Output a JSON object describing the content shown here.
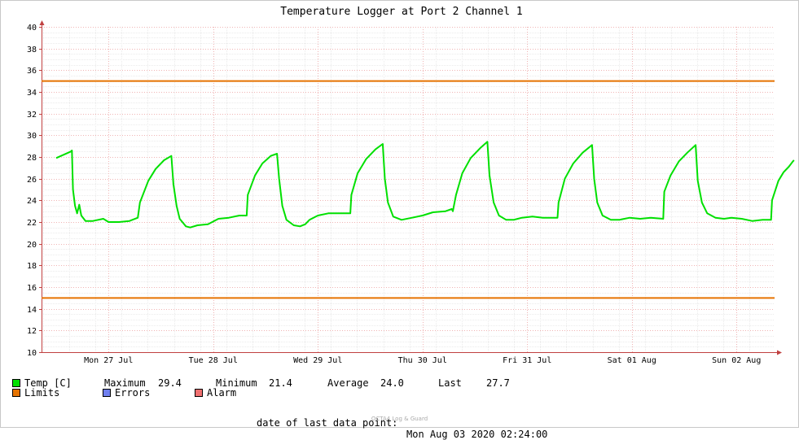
{
  "chart_data": {
    "type": "line",
    "title": "Temperature Logger at Port 2 Channel 1",
    "ylim": [
      10,
      40
    ],
    "y_ticks": [
      10,
      12,
      14,
      16,
      18,
      20,
      22,
      24,
      26,
      28,
      30,
      32,
      34,
      36,
      38,
      40
    ],
    "x_ticks": [
      {
        "label": "Mon 27 Jul",
        "day": 1
      },
      {
        "label": "Tue 28 Jul",
        "day": 2
      },
      {
        "label": "Wed 29 Jul",
        "day": 3
      },
      {
        "label": "Thu 30 Jul",
        "day": 4
      },
      {
        "label": "Fri 31 Jul",
        "day": 5
      },
      {
        "label": "Sat 01 Aug",
        "day": 6
      },
      {
        "label": "Sun 02 Aug",
        "day": 7
      }
    ],
    "series": [
      {
        "name": "Temp [C]",
        "color": "#00e000",
        "points": [
          [
            0.0,
            27.9
          ],
          [
            0.07,
            28.2
          ],
          [
            0.14,
            28.5
          ],
          [
            0.15,
            28.6
          ],
          [
            0.16,
            25.0
          ],
          [
            0.18,
            23.5
          ],
          [
            0.2,
            22.8
          ],
          [
            0.22,
            23.6
          ],
          [
            0.24,
            22.6
          ],
          [
            0.28,
            22.1
          ],
          [
            0.35,
            22.1
          ],
          [
            0.45,
            22.3
          ],
          [
            0.5,
            22.0
          ],
          [
            0.6,
            22.0
          ],
          [
            0.7,
            22.1
          ],
          [
            0.78,
            22.4
          ],
          [
            0.8,
            23.8
          ],
          [
            0.88,
            25.8
          ],
          [
            0.95,
            26.9
          ],
          [
            1.03,
            27.7
          ],
          [
            1.1,
            28.1
          ],
          [
            1.12,
            25.5
          ],
          [
            1.15,
            23.5
          ],
          [
            1.18,
            22.3
          ],
          [
            1.24,
            21.6
          ],
          [
            1.28,
            21.5
          ],
          [
            1.35,
            21.7
          ],
          [
            1.45,
            21.8
          ],
          [
            1.55,
            22.3
          ],
          [
            1.65,
            22.4
          ],
          [
            1.75,
            22.6
          ],
          [
            1.82,
            22.6
          ],
          [
            1.83,
            24.5
          ],
          [
            1.9,
            26.3
          ],
          [
            1.97,
            27.4
          ],
          [
            2.05,
            28.1
          ],
          [
            2.11,
            28.3
          ],
          [
            2.13,
            26.0
          ],
          [
            2.16,
            23.5
          ],
          [
            2.2,
            22.2
          ],
          [
            2.27,
            21.7
          ],
          [
            2.33,
            21.6
          ],
          [
            2.38,
            21.8
          ],
          [
            2.42,
            22.2
          ],
          [
            2.5,
            22.6
          ],
          [
            2.6,
            22.8
          ],
          [
            2.72,
            22.8
          ],
          [
            2.81,
            22.8
          ],
          [
            2.82,
            24.5
          ],
          [
            2.88,
            26.5
          ],
          [
            2.96,
            27.8
          ],
          [
            3.05,
            28.7
          ],
          [
            3.12,
            29.2
          ],
          [
            3.14,
            26.0
          ],
          [
            3.17,
            23.8
          ],
          [
            3.22,
            22.5
          ],
          [
            3.3,
            22.2
          ],
          [
            3.4,
            22.4
          ],
          [
            3.5,
            22.6
          ],
          [
            3.6,
            22.9
          ],
          [
            3.72,
            23.0
          ],
          [
            3.78,
            23.2
          ],
          [
            3.79,
            23.0
          ],
          [
            3.82,
            24.5
          ],
          [
            3.88,
            26.5
          ],
          [
            3.96,
            27.9
          ],
          [
            4.05,
            28.8
          ],
          [
            4.12,
            29.4
          ],
          [
            4.14,
            26.3
          ],
          [
            4.18,
            23.8
          ],
          [
            4.23,
            22.6
          ],
          [
            4.3,
            22.2
          ],
          [
            4.37,
            22.2
          ],
          [
            4.45,
            22.4
          ],
          [
            4.55,
            22.5
          ],
          [
            4.65,
            22.4
          ],
          [
            4.79,
            22.4
          ],
          [
            4.8,
            23.8
          ],
          [
            4.86,
            26.0
          ],
          [
            4.94,
            27.4
          ],
          [
            5.03,
            28.4
          ],
          [
            5.12,
            29.1
          ],
          [
            5.14,
            26.0
          ],
          [
            5.17,
            23.8
          ],
          [
            5.22,
            22.6
          ],
          [
            5.3,
            22.2
          ],
          [
            5.38,
            22.2
          ],
          [
            5.48,
            22.4
          ],
          [
            5.58,
            22.3
          ],
          [
            5.68,
            22.4
          ],
          [
            5.8,
            22.3
          ],
          [
            5.81,
            24.8
          ],
          [
            5.87,
            26.3
          ],
          [
            5.95,
            27.6
          ],
          [
            6.03,
            28.4
          ],
          [
            6.11,
            29.1
          ],
          [
            6.13,
            25.8
          ],
          [
            6.17,
            23.8
          ],
          [
            6.22,
            22.8
          ],
          [
            6.3,
            22.4
          ],
          [
            6.38,
            22.3
          ],
          [
            6.45,
            22.4
          ],
          [
            6.55,
            22.3
          ],
          [
            6.65,
            22.1
          ],
          [
            6.75,
            22.2
          ],
          [
            6.83,
            22.2
          ],
          [
            6.84,
            24.0
          ],
          [
            6.9,
            25.8
          ],
          [
            6.95,
            26.6
          ],
          [
            7.0,
            27.1
          ],
          [
            7.04,
            27.6
          ],
          [
            7.05,
            27.7
          ]
        ]
      },
      {
        "name": "Limits",
        "color": "#e67300",
        "hlines": [
          35,
          15
        ]
      }
    ],
    "grid": true
  },
  "legend": {
    "temp_label": "Temp [C]",
    "max_label": "Maximum",
    "max_value": "29.4",
    "min_label": "Minimum",
    "min_value": "21.4",
    "avg_label": "Average",
    "avg_value": "24.0",
    "last_label": "Last",
    "last_value": "27.7",
    "limits_label": "Limits",
    "errors_label": "Errors",
    "alarm_label": "Alarm",
    "colors": {
      "temp": "#00e000",
      "limits": "#e67300",
      "errors": "#7080f0",
      "alarm": "#f07070"
    }
  },
  "footer": {
    "prefix": "date of last data point:",
    "value": "Mon Aug 03 2020 02:24:00"
  },
  "credit": "OCTA4 Log & Guard"
}
